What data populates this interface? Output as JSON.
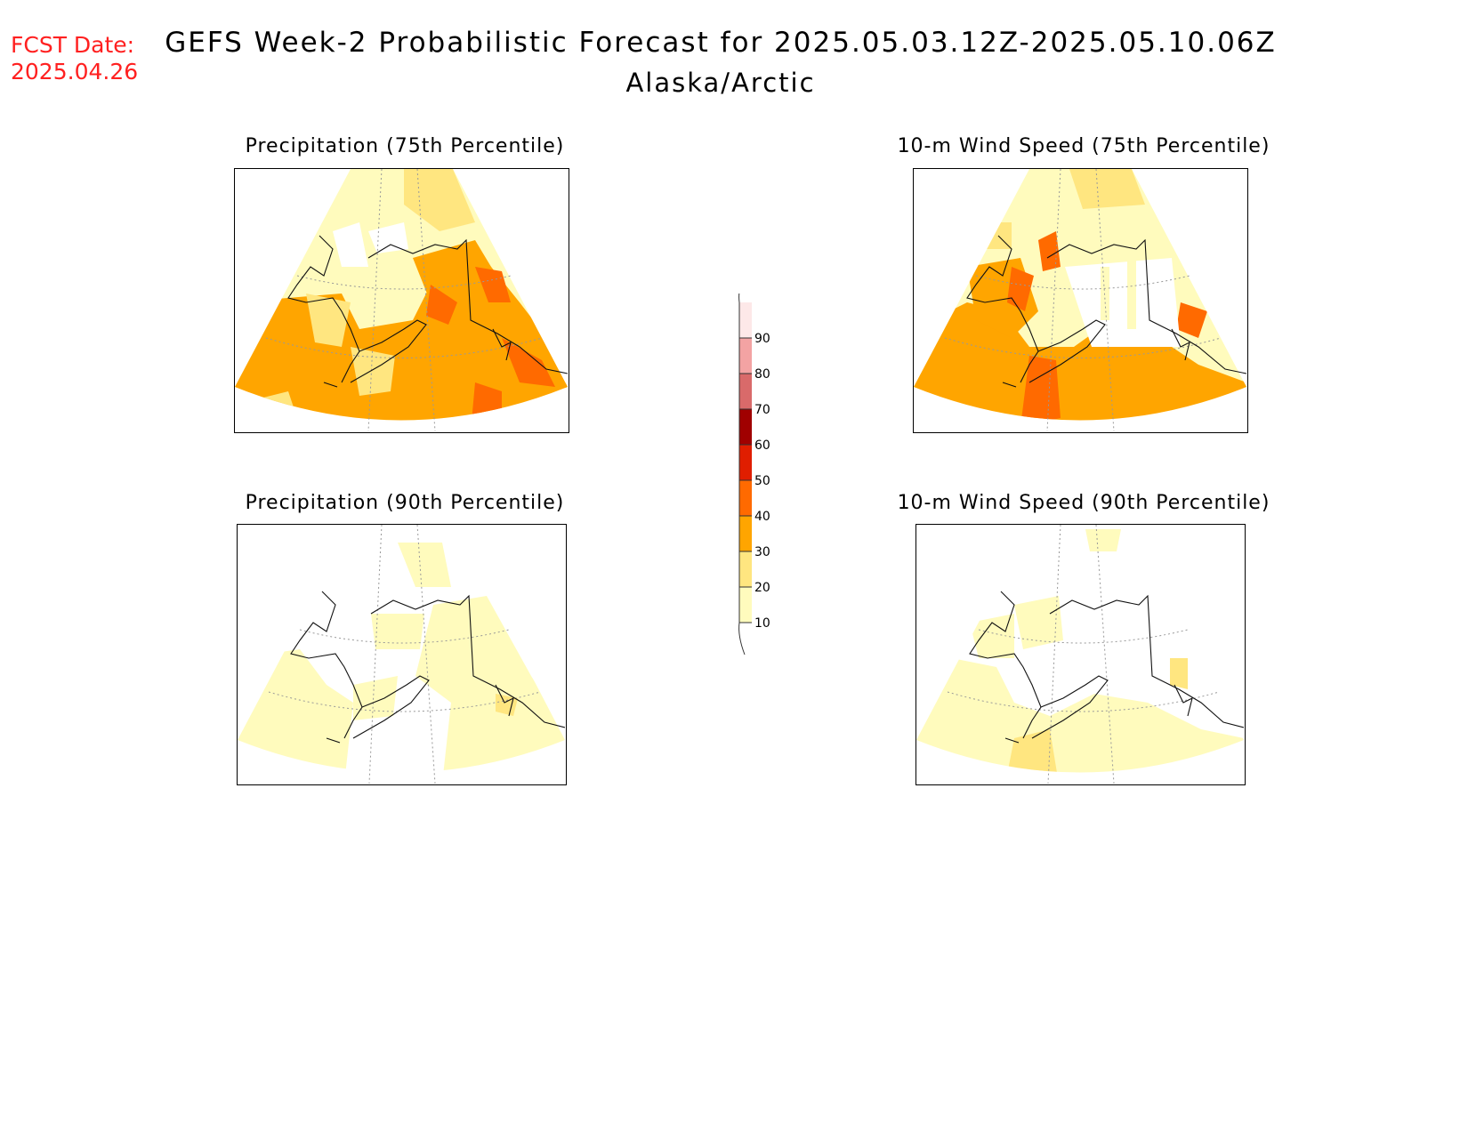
{
  "header": {
    "fcst_label": "FCST Date:",
    "fcst_date": "2025.04.26",
    "title": "GEFS Week-2 Probabilistic Forecast for 2025.05.03.12Z-2025.05.10.06Z",
    "region": "Alaska/Arctic"
  },
  "panels": {
    "precip75": {
      "title": "Precipitation (75th Percentile)"
    },
    "wind75": {
      "title": "10-m Wind Speed (75th Percentile)"
    },
    "precip90": {
      "title": "Precipitation (90th Percentile)"
    },
    "wind90": {
      "title": "10-m Wind Speed (90th Percentile)"
    }
  },
  "colorbar": {
    "levels": [
      "10",
      "20",
      "30",
      "40",
      "50",
      "60",
      "70",
      "80",
      "90"
    ],
    "colors": [
      "#fffbbd",
      "#ffe680",
      "#ffa500",
      "#ff6a00",
      "#e01e00",
      "#a00000",
      "#d96a6a",
      "#f3a3a3",
      "#fde8e8"
    ]
  }
}
